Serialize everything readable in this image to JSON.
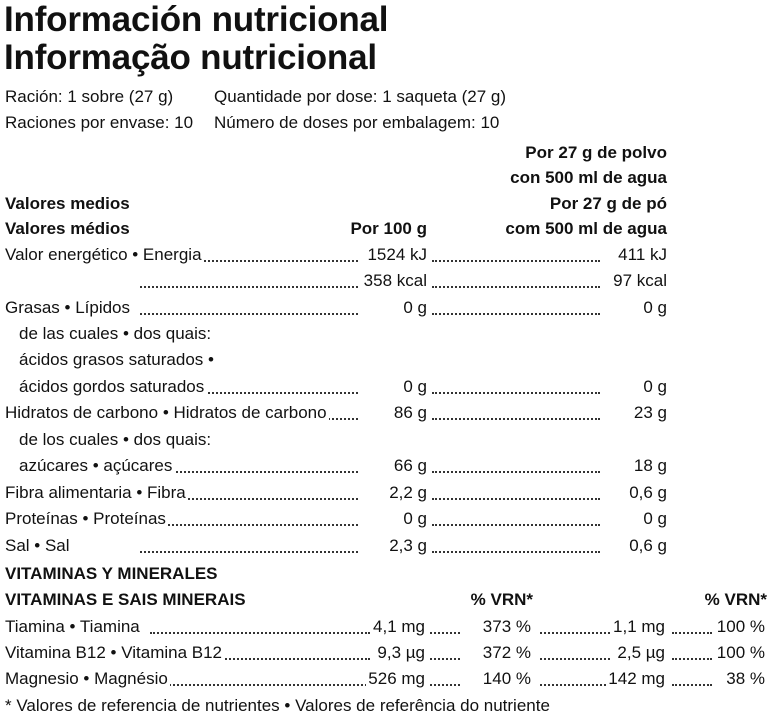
{
  "title": {
    "es": "Información nutricional",
    "pt": "Informação nutricional"
  },
  "serving": {
    "es_size": "Ración: 1 sobre (27 g)",
    "pt_size": "Quantidade por dose: 1 saqueta (27 g)",
    "es_count": "Raciones por envase: 10",
    "pt_count": "Número de doses por embalagem: 10"
  },
  "headers": {
    "col2_es_line1": "Por 27 g de polvo",
    "col2_es_line2": "con 500 ml de agua",
    "avg_es": "Valores medios",
    "col2_pt_line1": "Por 27 g de pó",
    "avg_pt": "Valores médios",
    "col1": "Por 100 g",
    "col2_pt_line2": "com 500 ml de agua"
  },
  "nutrients": [
    {
      "label": "Valor energético • Energia",
      "v100": "1524 kJ",
      "v27": "411 kJ"
    },
    {
      "label": "",
      "v100": "358 kcal",
      "v27": "97 kcal"
    },
    {
      "label": "Grasas • Lípidos",
      "v100": "0 g",
      "v27": "0 g"
    },
    {
      "label": "de las cuales • dos quais:",
      "v100": "",
      "v27": ""
    },
    {
      "label": "ácidos grasos saturados •",
      "v100": "",
      "v27": ""
    },
    {
      "label": "ácidos gordos saturados",
      "v100": "0 g",
      "v27": "0 g"
    },
    {
      "label": "Hidratos de carbono • Hidratos de carbono",
      "v100": "86 g",
      "v27": "23 g"
    },
    {
      "label": "de los cuales • dos quais:",
      "v100": "",
      "v27": ""
    },
    {
      "label": "azúcares • açúcares",
      "v100": "66 g",
      "v27": "18 g"
    },
    {
      "label": "Fibra alimentaria • Fibra",
      "v100": "2,2 g",
      "v27": "0,6 g"
    },
    {
      "label": "Proteínas • Proteínas",
      "v100": "0 g",
      "v27": "0 g"
    },
    {
      "label": "Sal • Sal",
      "v100": "2,3 g",
      "v27": "0,6 g"
    }
  ],
  "vitamins": {
    "heading_es": "VITAMINAS Y MINERALES",
    "heading_pt": "VITAMINAS E SAIS MINERAIS",
    "vrn_header_1": "% VRN*",
    "vrn_header_2": "% VRN*",
    "rows": [
      {
        "label": "Tiamina • Tiamina",
        "v100": "4,1 mg",
        "vrn100": "373 %",
        "v27": "1,1 mg",
        "vrn27": "100 %"
      },
      {
        "label": "Vitamina B12 • Vitamina B12",
        "v100": "9,3 µg",
        "vrn100": "372 %",
        "v27": "2,5 µg",
        "vrn27": "100 %"
      },
      {
        "label": "Magnesio • Magnésio",
        "v100": "526 mg",
        "vrn100": "140 %",
        "v27": "142 mg",
        "vrn27": "38 %"
      }
    ]
  },
  "footnote": "* Valores de referencia de nutrientes • Valores de referência do nutriente"
}
